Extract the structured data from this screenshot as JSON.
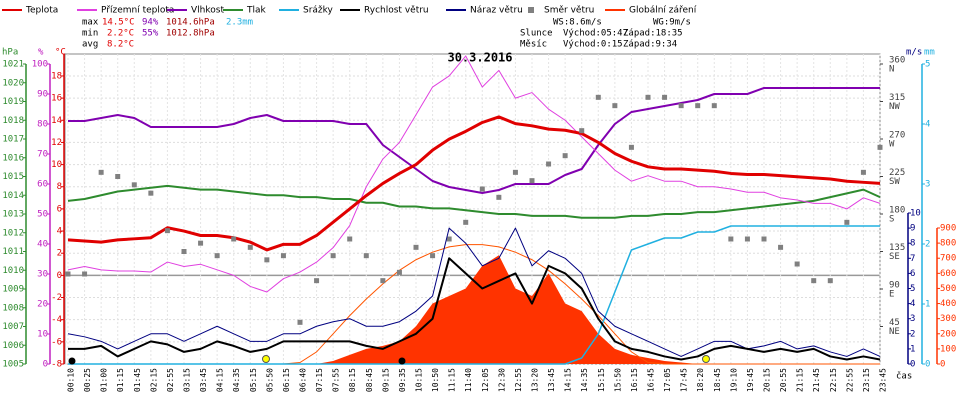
{
  "chart_data": {
    "type": "line",
    "title": "30.3.2016",
    "x_label": "čas",
    "grid": true,
    "categories": [
      "00:10",
      "00:25",
      "01:00",
      "01:15",
      "01:45",
      "02:15",
      "02:55",
      "03:15",
      "03:45",
      "04:15",
      "04:35",
      "05:15",
      "05:50",
      "06:15",
      "06:40",
      "07:15",
      "07:55",
      "08:15",
      "08:45",
      "09:15",
      "09:35",
      "10:15",
      "10:50",
      "11:15",
      "11:40",
      "12:05",
      "12:30",
      "12:55",
      "13:20",
      "13:45",
      "14:15",
      "14:35",
      "15:15",
      "15:50",
      "16:15",
      "16:45",
      "17:05",
      "17:45",
      "18:20",
      "18:45",
      "19:10",
      "19:45",
      "20:15",
      "20:55",
      "21:15",
      "21:45",
      "22:15",
      "22:55",
      "23:15",
      "23:45"
    ],
    "axes": {
      "pressure": {
        "label": "hPa",
        "color": "#2e8b2e",
        "lim": [
          1005,
          1021
        ],
        "ticks": [
          1005,
          1006,
          1007,
          1008,
          1009,
          1010,
          1011,
          1012,
          1013,
          1014,
          1015,
          1016,
          1017,
          1018,
          1019,
          1020,
          1021
        ]
      },
      "humidity": {
        "label": "%",
        "color": "#c020c0",
        "lim": [
          0,
          100
        ],
        "ticks": [
          0,
          10,
          20,
          30,
          40,
          50,
          60,
          70,
          80,
          90,
          100
        ]
      },
      "temp": {
        "label": "°C",
        "color": "#e00000",
        "lim": [
          -8,
          20
        ],
        "ticks": [
          -8,
          -6,
          -4,
          -2,
          0,
          2,
          4,
          6,
          8,
          10,
          12,
          14,
          16,
          18
        ]
      },
      "direction": {
        "color": "#404040",
        "lim": [
          0,
          360
        ],
        "ticks": [
          {
            "value": 45,
            "label": "NE"
          },
          {
            "value": 90,
            "label": "E"
          },
          {
            "value": 135,
            "label": "SE"
          },
          {
            "value": 180,
            "label": "S"
          },
          {
            "value": 225,
            "label": "SW"
          },
          {
            "value": 270,
            "label": "W"
          },
          {
            "value": 315,
            "label": "NW"
          },
          {
            "value": 360,
            "label": "N"
          }
        ]
      },
      "wind": {
        "label": "m/s",
        "color": "#000080",
        "lim": [
          0,
          10
        ],
        "ticks": [
          0,
          1,
          2,
          3,
          4,
          5,
          6,
          7,
          8,
          9,
          10
        ]
      },
      "rain": {
        "label": "mm",
        "color": "#20b0e0",
        "lim": [
          0,
          5
        ],
        "ticks": [
          0,
          1,
          2,
          3,
          4,
          5
        ]
      },
      "solar": {
        "color": "#ff3300",
        "lim": [
          0,
          900
        ],
        "ticks": [
          0,
          100,
          200,
          300,
          400,
          500,
          600,
          700,
          800,
          900
        ]
      }
    },
    "series": [
      {
        "name": "Teplota",
        "type": "line",
        "axis": "temp",
        "color": "#e00000",
        "width": 3,
        "values": [
          3.2,
          3.1,
          3.0,
          3.2,
          3.3,
          3.4,
          4.3,
          4.0,
          3.6,
          3.6,
          3.4,
          3.0,
          2.3,
          2.8,
          2.8,
          3.6,
          4.8,
          6.0,
          7.2,
          8.3,
          9.2,
          10.0,
          11.3,
          12.3,
          13.0,
          13.8,
          14.3,
          13.7,
          13.5,
          13.2,
          13.1,
          12.8,
          12.0,
          11.0,
          10.3,
          9.8,
          9.6,
          9.6,
          9.5,
          9.4,
          9.2,
          9.1,
          9.1,
          9.0,
          8.9,
          8.8,
          8.7,
          8.5,
          8.4,
          8.3
        ]
      },
      {
        "name": "Přízemní teplota",
        "type": "line",
        "axis": "temp",
        "color": "#e040e0",
        "width": 1,
        "values": [
          0.5,
          0.8,
          0.5,
          0.4,
          0.4,
          0.3,
          1.2,
          0.8,
          1.0,
          0.5,
          0,
          -1,
          -1.5,
          -0.3,
          0.3,
          1.2,
          2.5,
          4.5,
          8,
          10.5,
          12,
          14.5,
          17,
          18,
          19.8,
          17,
          18.5,
          16,
          16.5,
          15,
          14,
          12.5,
          11,
          9.5,
          8.5,
          9,
          8.5,
          8.5,
          8,
          8,
          7.8,
          7.5,
          7.5,
          7,
          6.8,
          6.5,
          6.5,
          6,
          7,
          6.5
        ]
      },
      {
        "name": "Vlhkost",
        "type": "line",
        "axis": "humidity",
        "color": "#8000b0",
        "width": 2,
        "values": [
          81,
          81,
          82,
          83,
          82,
          79,
          79,
          79,
          79,
          79,
          80,
          82,
          83,
          81,
          81,
          81,
          81,
          80,
          80,
          73,
          69,
          65,
          61,
          59,
          58,
          57,
          58,
          60,
          60,
          60,
          63,
          65,
          73,
          80,
          84,
          85,
          86,
          87,
          88,
          90,
          90,
          90,
          92,
          92,
          92,
          92,
          92,
          92,
          92,
          92
        ]
      },
      {
        "name": "Tlak",
        "type": "line",
        "axis": "pressure",
        "color": "#2e8b2e",
        "width": 2,
        "values": [
          1013.7,
          1013.8,
          1014.0,
          1014.2,
          1014.3,
          1014.4,
          1014.5,
          1014.4,
          1014.3,
          1014.3,
          1014.2,
          1014.1,
          1014.0,
          1014.0,
          1013.9,
          1013.9,
          1013.8,
          1013.8,
          1013.6,
          1013.6,
          1013.4,
          1013.4,
          1013.3,
          1013.3,
          1013.2,
          1013.1,
          1013.0,
          1013.0,
          1012.9,
          1012.9,
          1012.9,
          1012.8,
          1012.8,
          1012.8,
          1012.9,
          1012.9,
          1013.0,
          1013.0,
          1013.1,
          1013.1,
          1013.2,
          1013.3,
          1013.4,
          1013.5,
          1013.6,
          1013.7,
          1013.9,
          1014.1,
          1014.3,
          1013.9
        ]
      },
      {
        "name": "Srážky",
        "type": "line",
        "axis": "rain",
        "color": "#20b0e0",
        "width": 1.5,
        "values": [
          0,
          0,
          0,
          0,
          0,
          0,
          0,
          0,
          0,
          0,
          0,
          0,
          0,
          0,
          0,
          0,
          0,
          0,
          0,
          0,
          0,
          0,
          0,
          0,
          0,
          0,
          0,
          0,
          0,
          0,
          0,
          0.1,
          0.5,
          1.2,
          1.9,
          2.0,
          2.1,
          2.1,
          2.2,
          2.2,
          2.3,
          2.3,
          2.3,
          2.3,
          2.3,
          2.3,
          2.3,
          2.3,
          2.3,
          2.3
        ]
      },
      {
        "name": "Rychlost větru",
        "type": "line",
        "axis": "wind",
        "color": "#000000",
        "width": 2,
        "values": [
          1,
          1,
          1.2,
          0.5,
          1,
          1.5,
          1.3,
          0.8,
          1,
          1.5,
          1.2,
          0.8,
          1,
          1.5,
          1.5,
          1.5,
          1.5,
          1.5,
          1.2,
          1.0,
          1.5,
          2,
          3,
          7,
          6,
          5,
          5.5,
          6,
          4,
          6.5,
          6,
          5,
          3,
          1.5,
          1,
          0.8,
          0.5,
          0.3,
          0.5,
          1,
          1.2,
          1,
          0.8,
          1,
          0.8,
          1,
          0.5,
          0.3,
          0.5,
          0.3
        ]
      },
      {
        "name": "Náraz větru",
        "type": "line",
        "axis": "wind",
        "color": "#000080",
        "width": 1,
        "values": [
          2,
          1.8,
          1.5,
          1,
          1.5,
          2,
          2,
          1.5,
          2,
          2.5,
          2,
          1.5,
          1.5,
          2,
          2,
          2.5,
          2.8,
          3,
          2.5,
          2.5,
          2.8,
          3.5,
          4.5,
          9,
          8,
          6.5,
          7,
          9,
          6.5,
          7.5,
          7,
          6,
          3.5,
          2.5,
          2,
          1.5,
          1,
          0.5,
          1,
          1.5,
          1.5,
          1,
          1.2,
          1.5,
          1,
          1.2,
          0.8,
          0.5,
          1,
          0.5
        ]
      },
      {
        "name": "Směr větru",
        "type": "points",
        "axis": "direction",
        "color": "#808080",
        "values": [
          108,
          108,
          230,
          225,
          215,
          205,
          160,
          135,
          145,
          130,
          150,
          140,
          125,
          130,
          50,
          100,
          130,
          150,
          130,
          100,
          110,
          140,
          130,
          150,
          170,
          210,
          200,
          230,
          220,
          240,
          250,
          280,
          320,
          310,
          260,
          320,
          320,
          310,
          310,
          310,
          150,
          150,
          150,
          140,
          120,
          100,
          100,
          170,
          230,
          260
        ]
      },
      {
        "name": "Globální záření",
        "type": "area",
        "axis": "solar",
        "color": "#ff3300",
        "values": [
          0,
          0,
          0,
          0,
          0,
          0,
          0,
          0,
          0,
          0,
          0,
          0,
          0,
          0,
          0,
          0,
          20,
          60,
          100,
          120,
          150,
          250,
          400,
          450,
          500,
          650,
          720,
          500,
          450,
          600,
          400,
          350,
          200,
          100,
          60,
          40,
          20,
          10,
          0,
          0,
          0,
          0,
          0,
          0,
          0,
          0,
          0,
          0,
          0,
          0
        ],
        "theoretical": [
          0,
          0,
          0,
          0,
          0,
          0,
          0,
          0,
          0,
          0,
          0,
          0,
          0,
          0,
          10,
          80,
          200,
          320,
          430,
          530,
          620,
          690,
          740,
          775,
          790,
          790,
          775,
          740,
          690,
          620,
          530,
          430,
          320,
          200,
          80,
          10,
          0,
          0,
          0,
          0,
          0,
          0,
          0,
          0,
          0,
          0,
          0,
          0,
          0,
          0
        ]
      }
    ],
    "stats": {
      "max": {
        "label": "max",
        "temp": "14.5°C",
        "hum": "94%",
        "pres": "1014.6hPa",
        "rain": "2.3mm"
      },
      "min": {
        "label": "min",
        "temp": "2.2°C",
        "hum": "55%",
        "pres": "1012.8hPa"
      },
      "avg": {
        "label": "avg",
        "temp": "8.2°C"
      },
      "wind": {
        "ws": "WS:8.6m/s",
        "wg": "WG:9m/s"
      },
      "sun": {
        "label": "Slunce",
        "rise": "Východ:05:47",
        "set": "Západ:18:35"
      },
      "moon": {
        "label": "Měsíc",
        "rise": "Východ:0:15",
        "set": "Západ:9:34"
      }
    }
  }
}
